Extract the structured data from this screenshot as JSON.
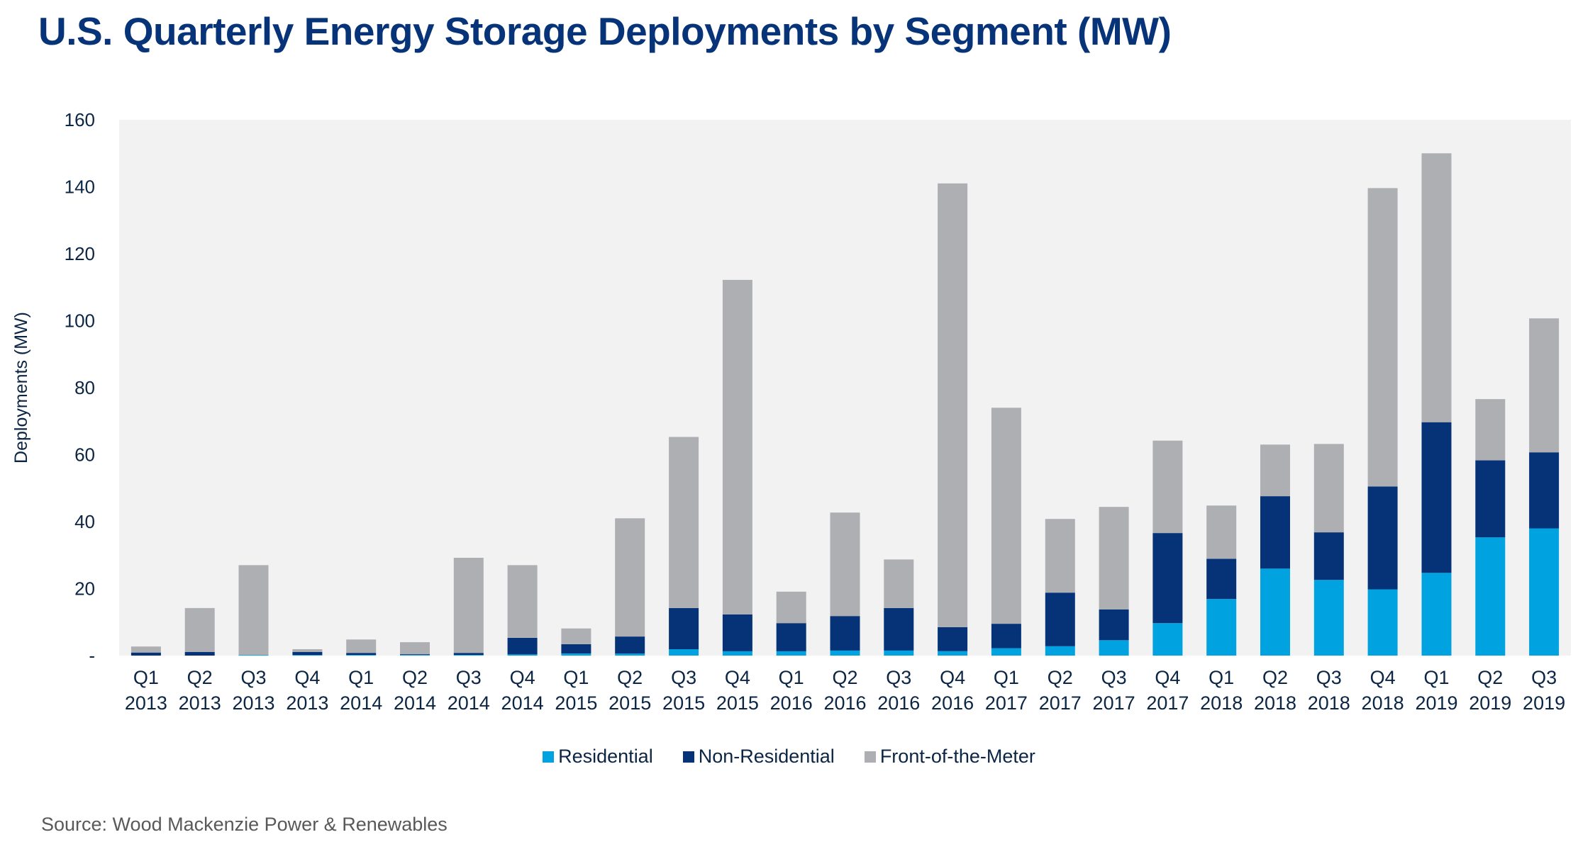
{
  "chart_data": {
    "type": "bar",
    "stacked": true,
    "title": "U.S. Quarterly Energy Storage Deployments by Segment (MW)",
    "xlabel": "",
    "ylabel": "Deployments (MW)",
    "ylim": [
      0,
      160
    ],
    "yticks": [
      0,
      20,
      40,
      60,
      80,
      100,
      120,
      140,
      160
    ],
    "ytick_labels": [
      "-",
      "20",
      "40",
      "60",
      "80",
      "100",
      "120",
      "140",
      "160"
    ],
    "grid": false,
    "legend_position": "bottom",
    "categories": [
      [
        "Q1",
        "2013"
      ],
      [
        "Q2",
        "2013"
      ],
      [
        "Q3",
        "2013"
      ],
      [
        "Q4",
        "2013"
      ],
      [
        "Q1",
        "2014"
      ],
      [
        "Q2",
        "2014"
      ],
      [
        "Q3",
        "2014"
      ],
      [
        "Q4",
        "2014"
      ],
      [
        "Q1",
        "2015"
      ],
      [
        "Q2",
        "2015"
      ],
      [
        "Q3",
        "2015"
      ],
      [
        "Q4",
        "2015"
      ],
      [
        "Q1",
        "2016"
      ],
      [
        "Q2",
        "2016"
      ],
      [
        "Q3",
        "2016"
      ],
      [
        "Q4",
        "2016"
      ],
      [
        "Q1",
        "2017"
      ],
      [
        "Q2",
        "2017"
      ],
      [
        "Q3",
        "2017"
      ],
      [
        "Q4",
        "2017"
      ],
      [
        "Q1",
        "2018"
      ],
      [
        "Q2",
        "2018"
      ],
      [
        "Q3",
        "2018"
      ],
      [
        "Q4",
        "2018"
      ],
      [
        "Q1",
        "2019"
      ],
      [
        "Q2",
        "2019"
      ],
      [
        "Q3",
        "2019"
      ]
    ],
    "series": [
      {
        "name": "Residential",
        "color": "#00a3e0",
        "values": [
          0.0,
          0.0,
          0.2,
          0.2,
          0.2,
          0.2,
          0.2,
          0.4,
          0.6,
          0.6,
          1.9,
          1.3,
          1.3,
          1.5,
          1.5,
          1.3,
          2.2,
          2.8,
          4.6,
          9.7,
          16.9,
          26.0,
          22.6,
          19.8,
          24.7,
          35.3,
          38.0
        ]
      },
      {
        "name": "Non-Residential",
        "color": "#063378",
        "values": [
          0.9,
          1.1,
          0.0,
          0.9,
          0.6,
          0.2,
          0.6,
          4.9,
          2.8,
          5.1,
          12.3,
          11.0,
          8.4,
          10.3,
          12.7,
          7.2,
          7.3,
          16.0,
          9.2,
          26.9,
          12.0,
          21.6,
          14.2,
          30.7,
          45.0,
          23.0,
          22.7
        ]
      },
      {
        "name": "Front-of-the-Meter",
        "color": "#aeafb3",
        "values": [
          1.8,
          13.1,
          26.8,
          0.8,
          4.0,
          3.6,
          28.4,
          21.7,
          4.7,
          35.3,
          51.1,
          99.9,
          9.4,
          30.9,
          14.5,
          132.5,
          64.5,
          22.0,
          30.6,
          27.6,
          15.9,
          15.4,
          26.4,
          89.1,
          80.3,
          18.3,
          40.0
        ]
      }
    ]
  },
  "legend": {
    "items": [
      {
        "label": "Residential",
        "color": "#00a3e0"
      },
      {
        "label": "Non-Residential",
        "color": "#063378"
      },
      {
        "label": "Front-of-the-Meter",
        "color": "#aeafb3"
      }
    ]
  },
  "source": "Source: Wood Mackenzie Power & Renewables",
  "colors": {
    "title": "#073378",
    "plot_background": "#f2f2f2",
    "axis_text": "#0b2545"
  }
}
